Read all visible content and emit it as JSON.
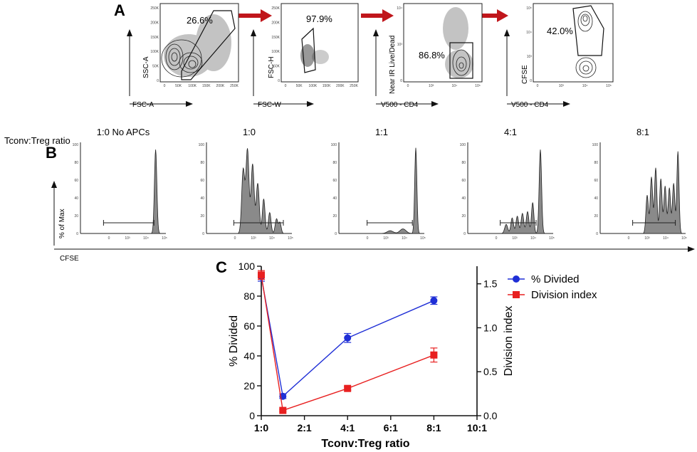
{
  "panels": {
    "a": {
      "letter": "A",
      "gates": [
        {
          "percent": "26.6%",
          "xlabel": "FSC-A",
          "ylabel": "SSC-A",
          "yticks": [
            "250K",
            "200K",
            "150K",
            "100K",
            "50K",
            "0"
          ],
          "xticks": [
            "0",
            "50K",
            "100K",
            "150K",
            "200K",
            "250K"
          ]
        },
        {
          "percent": "97.9%",
          "xlabel": "FSC-W",
          "ylabel": "FSC-H",
          "yticks": [
            "250K",
            "200K",
            "150K",
            "100K",
            "50K",
            "0"
          ],
          "xticks": [
            "0",
            "50K",
            "100K",
            "150K",
            "200K",
            "250K"
          ]
        },
        {
          "percent": "86.8%",
          "xlabel": "V500 - CD4",
          "ylabel": "Near IR Live/Dead",
          "yticks": [
            "10⁴",
            "10³",
            "0"
          ],
          "xticks": [
            "0",
            "10³",
            "10⁴",
            "10⁵"
          ]
        },
        {
          "percent": "42.0%",
          "xlabel": "V500 - CD4",
          "ylabel": "CFSE",
          "yticks": [
            "10⁵",
            "10⁴",
            "10³",
            "0"
          ],
          "xticks": [
            "0",
            "10³",
            "10⁴",
            "10⁵"
          ]
        }
      ]
    },
    "b": {
      "letter": "B",
      "row_label": "Tconv:Treg ratio",
      "ylabel": "% of Max",
      "xlabel": "CFSE",
      "yticks": [
        "100",
        "80",
        "60",
        "40",
        "20",
        "0"
      ],
      "xticks": [
        "0",
        "10³",
        "10⁴",
        "10⁵"
      ],
      "titles": [
        "1:0 No APCs",
        "1:0",
        "1:1",
        "4:1",
        "8:1"
      ]
    },
    "c": {
      "letter": "C"
    }
  },
  "chart_data": {
    "type": "line",
    "xlabel": "Tconv:Treg ratio",
    "ylabel": "% Divided",
    "y2label": "Division index",
    "categories": [
      "1:0",
      "2:1",
      "4:1",
      "6:1",
      "8:1",
      "10:1"
    ],
    "x": [
      0,
      2,
      4,
      6,
      8,
      10
    ],
    "xlim": [
      0,
      10
    ],
    "ylim": [
      0,
      100
    ],
    "y2lim": [
      0,
      1.7
    ],
    "yticks": [
      0,
      20,
      40,
      60,
      80,
      100
    ],
    "y2ticks": [
      "0.0",
      "0.5",
      "1.0",
      "1.5"
    ],
    "series": [
      {
        "name": "% Divided",
        "axis": "left",
        "color": "#1f2fd6",
        "marker": "circle",
        "x": [
          0,
          1,
          4,
          8
        ],
        "values": [
          93,
          13,
          52,
          77
        ],
        "err": [
          3,
          1.5,
          3,
          2.5
        ]
      },
      {
        "name": "Division index",
        "axis": "right",
        "color": "#e82020",
        "marker": "square",
        "x": [
          0,
          1,
          4,
          8
        ],
        "values": [
          1.6,
          0.06,
          0.31,
          0.69
        ],
        "err": [
          0.05,
          0.01,
          0.02,
          0.08
        ]
      }
    ],
    "legend": "top-right"
  }
}
